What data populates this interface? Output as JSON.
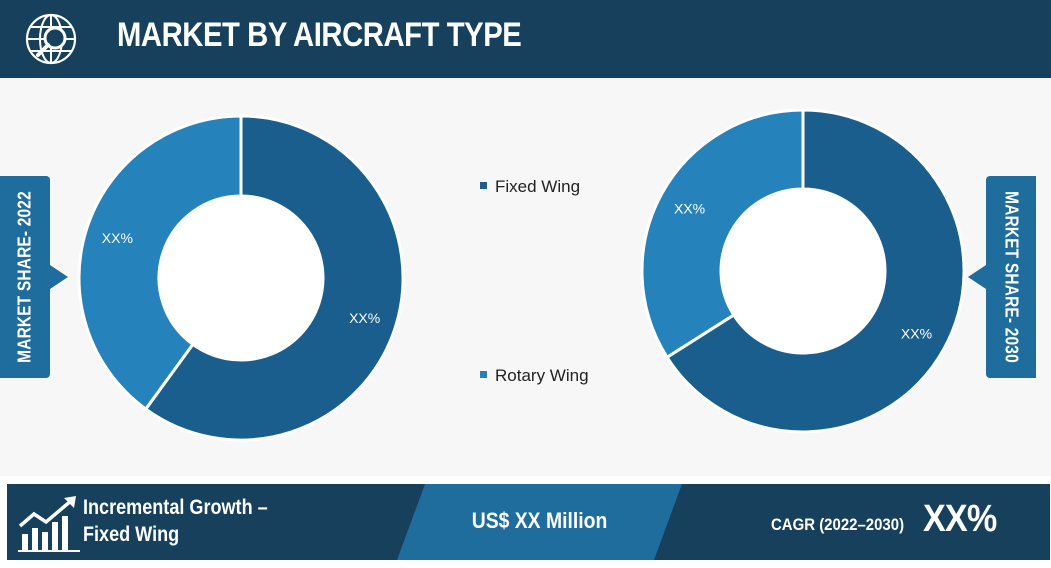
{
  "header": {
    "title": "MARKET BY AIRCRAFT TYPE"
  },
  "icons": {
    "header": "globe-search-icon",
    "footer": "growth-chart-icon"
  },
  "colors": {
    "header_bg": "#16405b",
    "accent": "#1e6d9c",
    "fixed_wing": "#1a5e8e",
    "rotary_wing": "#2682ba"
  },
  "side_labels": {
    "left": "MARKET SHARE- 2022",
    "right": "MARKET SHARE- 2030"
  },
  "legend": [
    {
      "label": "Fixed Wing",
      "color": "#1a5e8e"
    },
    {
      "label": "Rotary Wing",
      "color": "#2682ba"
    }
  ],
  "chart_data": [
    {
      "type": "pie",
      "variant": "donut",
      "title": "",
      "categories": [
        "Fixed Wing",
        "Rotary Wing"
      ],
      "values": [
        60,
        40
      ],
      "data_labels": [
        "XX%",
        "XX%"
      ]
    },
    {
      "type": "pie",
      "variant": "donut",
      "title": "",
      "categories": [
        "Fixed Wing",
        "Rotary Wing"
      ],
      "values": [
        66,
        34
      ],
      "data_labels": [
        "XX%",
        "XX%"
      ]
    }
  ],
  "footer": {
    "growth_label": "Incremental Growth – Fixed Wing",
    "value": "US$ XX Million",
    "cagr_label": "CAGR (2022–2030)",
    "cagr_value": "XX%"
  }
}
